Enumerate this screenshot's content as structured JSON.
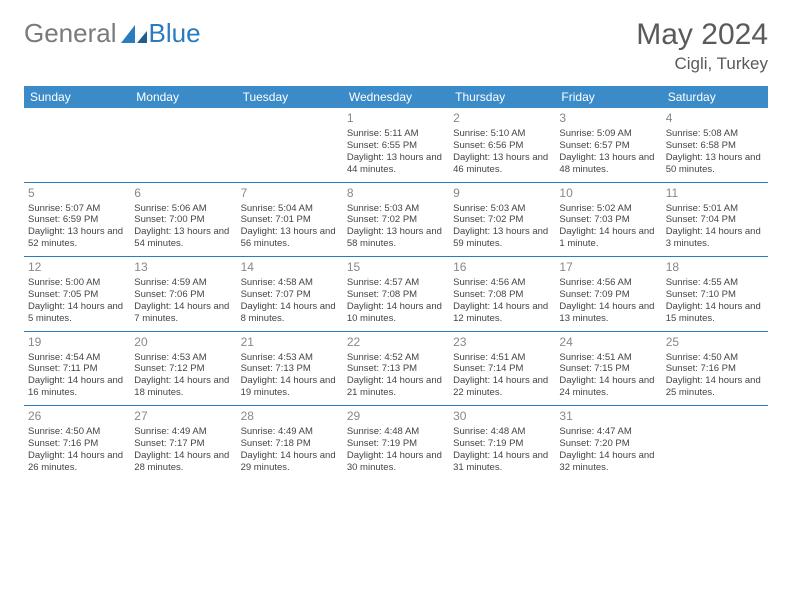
{
  "brand": {
    "part1": "General",
    "part2": "Blue"
  },
  "title": "May 2024",
  "location": "Cigli, Turkey",
  "colors": {
    "header_bg": "#3b8bc9",
    "header_text": "#ffffff",
    "rule": "#2b7bbf",
    "logo_gray": "#7a7a7a",
    "logo_blue": "#2b7bbf",
    "text": "#444444",
    "daynum": "#888888",
    "bg": "#ffffff"
  },
  "dayNames": [
    "Sunday",
    "Monday",
    "Tuesday",
    "Wednesday",
    "Thursday",
    "Friday",
    "Saturday"
  ],
  "weeks": [
    [
      null,
      null,
      null,
      {
        "n": "1",
        "sr": "5:11 AM",
        "ss": "6:55 PM",
        "dl": "13 hours and 44 minutes."
      },
      {
        "n": "2",
        "sr": "5:10 AM",
        "ss": "6:56 PM",
        "dl": "13 hours and 46 minutes."
      },
      {
        "n": "3",
        "sr": "5:09 AM",
        "ss": "6:57 PM",
        "dl": "13 hours and 48 minutes."
      },
      {
        "n": "4",
        "sr": "5:08 AM",
        "ss": "6:58 PM",
        "dl": "13 hours and 50 minutes."
      }
    ],
    [
      {
        "n": "5",
        "sr": "5:07 AM",
        "ss": "6:59 PM",
        "dl": "13 hours and 52 minutes."
      },
      {
        "n": "6",
        "sr": "5:06 AM",
        "ss": "7:00 PM",
        "dl": "13 hours and 54 minutes."
      },
      {
        "n": "7",
        "sr": "5:04 AM",
        "ss": "7:01 PM",
        "dl": "13 hours and 56 minutes."
      },
      {
        "n": "8",
        "sr": "5:03 AM",
        "ss": "7:02 PM",
        "dl": "13 hours and 58 minutes."
      },
      {
        "n": "9",
        "sr": "5:03 AM",
        "ss": "7:02 PM",
        "dl": "13 hours and 59 minutes."
      },
      {
        "n": "10",
        "sr": "5:02 AM",
        "ss": "7:03 PM",
        "dl": "14 hours and 1 minute."
      },
      {
        "n": "11",
        "sr": "5:01 AM",
        "ss": "7:04 PM",
        "dl": "14 hours and 3 minutes."
      }
    ],
    [
      {
        "n": "12",
        "sr": "5:00 AM",
        "ss": "7:05 PM",
        "dl": "14 hours and 5 minutes."
      },
      {
        "n": "13",
        "sr": "4:59 AM",
        "ss": "7:06 PM",
        "dl": "14 hours and 7 minutes."
      },
      {
        "n": "14",
        "sr": "4:58 AM",
        "ss": "7:07 PM",
        "dl": "14 hours and 8 minutes."
      },
      {
        "n": "15",
        "sr": "4:57 AM",
        "ss": "7:08 PM",
        "dl": "14 hours and 10 minutes."
      },
      {
        "n": "16",
        "sr": "4:56 AM",
        "ss": "7:08 PM",
        "dl": "14 hours and 12 minutes."
      },
      {
        "n": "17",
        "sr": "4:56 AM",
        "ss": "7:09 PM",
        "dl": "14 hours and 13 minutes."
      },
      {
        "n": "18",
        "sr": "4:55 AM",
        "ss": "7:10 PM",
        "dl": "14 hours and 15 minutes."
      }
    ],
    [
      {
        "n": "19",
        "sr": "4:54 AM",
        "ss": "7:11 PM",
        "dl": "14 hours and 16 minutes."
      },
      {
        "n": "20",
        "sr": "4:53 AM",
        "ss": "7:12 PM",
        "dl": "14 hours and 18 minutes."
      },
      {
        "n": "21",
        "sr": "4:53 AM",
        "ss": "7:13 PM",
        "dl": "14 hours and 19 minutes."
      },
      {
        "n": "22",
        "sr": "4:52 AM",
        "ss": "7:13 PM",
        "dl": "14 hours and 21 minutes."
      },
      {
        "n": "23",
        "sr": "4:51 AM",
        "ss": "7:14 PM",
        "dl": "14 hours and 22 minutes."
      },
      {
        "n": "24",
        "sr": "4:51 AM",
        "ss": "7:15 PM",
        "dl": "14 hours and 24 minutes."
      },
      {
        "n": "25",
        "sr": "4:50 AM",
        "ss": "7:16 PM",
        "dl": "14 hours and 25 minutes."
      }
    ],
    [
      {
        "n": "26",
        "sr": "4:50 AM",
        "ss": "7:16 PM",
        "dl": "14 hours and 26 minutes."
      },
      {
        "n": "27",
        "sr": "4:49 AM",
        "ss": "7:17 PM",
        "dl": "14 hours and 28 minutes."
      },
      {
        "n": "28",
        "sr": "4:49 AM",
        "ss": "7:18 PM",
        "dl": "14 hours and 29 minutes."
      },
      {
        "n": "29",
        "sr": "4:48 AM",
        "ss": "7:19 PM",
        "dl": "14 hours and 30 minutes."
      },
      {
        "n": "30",
        "sr": "4:48 AM",
        "ss": "7:19 PM",
        "dl": "14 hours and 31 minutes."
      },
      {
        "n": "31",
        "sr": "4:47 AM",
        "ss": "7:20 PM",
        "dl": "14 hours and 32 minutes."
      },
      null
    ]
  ],
  "labels": {
    "sunrise": "Sunrise:",
    "sunset": "Sunset:",
    "daylight": "Daylight:"
  }
}
